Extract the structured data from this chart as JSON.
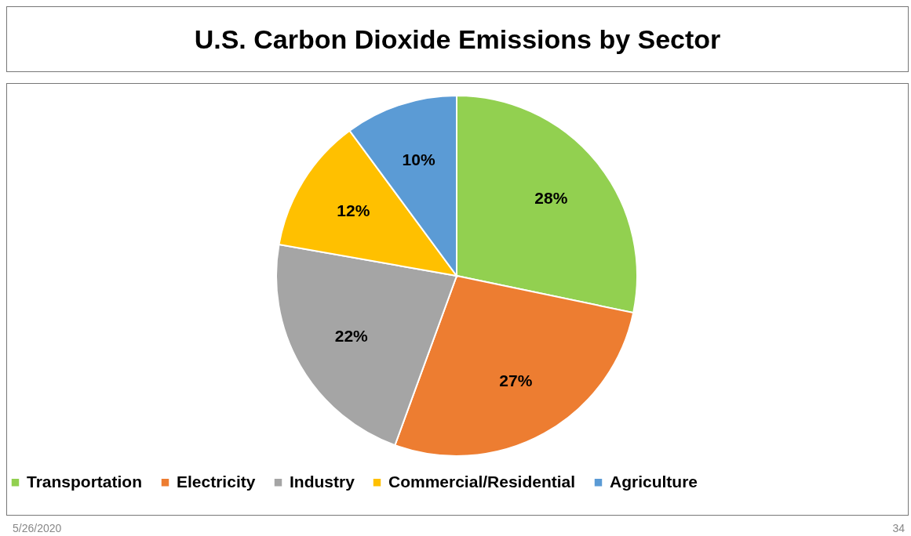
{
  "chart_data": {
    "type": "pie",
    "title": "U.S. Carbon Dioxide Emissions by Sector",
    "categories": [
      "Transportation",
      "Electricity",
      "Industry",
      "Commercial/Residential",
      "Agriculture"
    ],
    "values": [
      28,
      27,
      22,
      12,
      10
    ],
    "colors": [
      "#92d050",
      "#ed7d31",
      "#a5a5a5",
      "#ffc000",
      "#5b9bd5"
    ],
    "value_labels": [
      "28%",
      "27%",
      "22%",
      "12%",
      "10%"
    ],
    "legend": "bottom",
    "annotations": [
      "5/26/2020",
      "34"
    ]
  }
}
